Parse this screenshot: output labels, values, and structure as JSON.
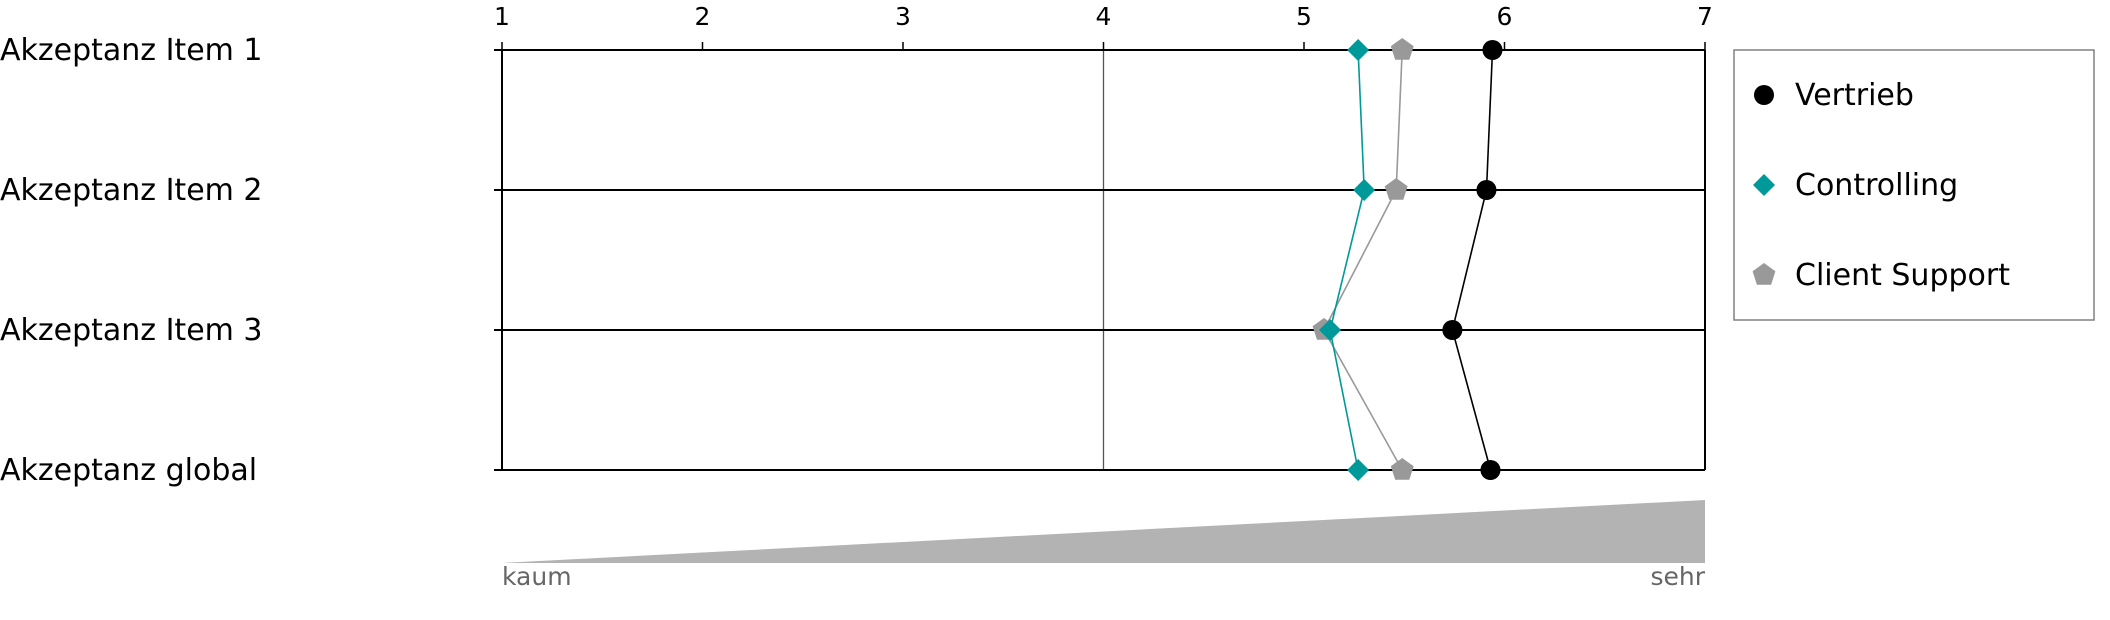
{
  "chart_data": {
    "type": "line",
    "orientation": "horizontal-profile",
    "categories": [
      "Akzeptanz Item 1",
      "Akzeptanz Item 2",
      "Akzeptanz Item 3",
      "Akzeptanz global"
    ],
    "xlim": [
      1,
      7
    ],
    "xticks": [
      1,
      2,
      3,
      4,
      5,
      6,
      7
    ],
    "reference_line": 4,
    "scale_low_label": "kaum",
    "scale_high_label": "sehr",
    "series": [
      {
        "name": "Vertrieb",
        "marker": "circle",
        "color": "#000000",
        "values": [
          5.94,
          5.91,
          5.74,
          5.93
        ]
      },
      {
        "name": "Controlling",
        "marker": "diamond",
        "color": "#009999",
        "values": [
          5.27,
          5.3,
          5.13,
          5.27
        ]
      },
      {
        "name": "Client Support",
        "marker": "pentagon",
        "color": "#999999",
        "values": [
          5.49,
          5.46,
          5.1,
          5.49
        ]
      }
    ],
    "legend_position": "right",
    "grid": false
  }
}
